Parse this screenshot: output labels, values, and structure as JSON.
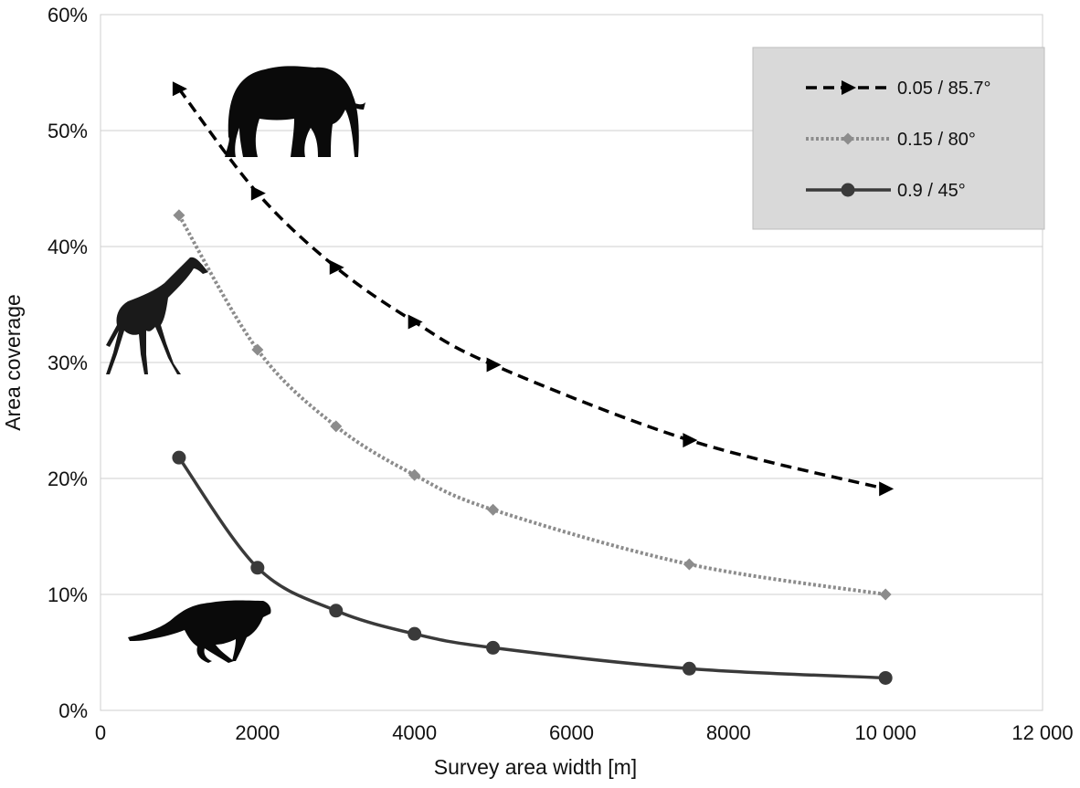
{
  "chart_data": {
    "type": "line",
    "xlabel": "Survey area width [m]",
    "ylabel": "Area coverage",
    "xlim": [
      0,
      12000
    ],
    "ylim": [
      0,
      60
    ],
    "x_ticks": [
      0,
      2000,
      4000,
      6000,
      8000,
      10000,
      12000
    ],
    "x_tick_labels": [
      "0",
      "2000",
      "4000",
      "6000",
      "8000",
      "10 000",
      "12 000"
    ],
    "y_ticks": [
      0,
      10,
      20,
      30,
      40,
      50,
      60
    ],
    "y_tick_labels": [
      "0%",
      "10%",
      "20%",
      "30%",
      "40%",
      "50%",
      "60%"
    ],
    "grid": "horizontal",
    "legend_position": "top-right",
    "x": [
      1000,
      2000,
      3000,
      4000,
      5000,
      7500,
      10000
    ],
    "series": [
      {
        "name": "0.05 / 85.7°",
        "values": [
          53.6,
          44.6,
          38.2,
          33.5,
          29.8,
          23.3,
          19.1
        ],
        "color": "#000000",
        "line": "dashed",
        "marker": "triangle"
      },
      {
        "name": "0.15 / 80°",
        "values": [
          42.7,
          31.1,
          24.5,
          20.3,
          17.3,
          12.6,
          10.0
        ],
        "color": "#8c8c8c",
        "line": "dotted",
        "marker": "diamond"
      },
      {
        "name": "0.9 / 45°",
        "values": [
          21.8,
          12.3,
          8.6,
          6.6,
          5.4,
          3.6,
          2.8
        ],
        "color": "#3a3a3a",
        "line": "solid",
        "marker": "circle"
      }
    ],
    "annotations": [
      {
        "icon": "elephant-icon"
      },
      {
        "icon": "giraffe-icon"
      },
      {
        "icon": "cheetah-icon"
      }
    ],
    "legend_background": "#d9d9d9"
  }
}
